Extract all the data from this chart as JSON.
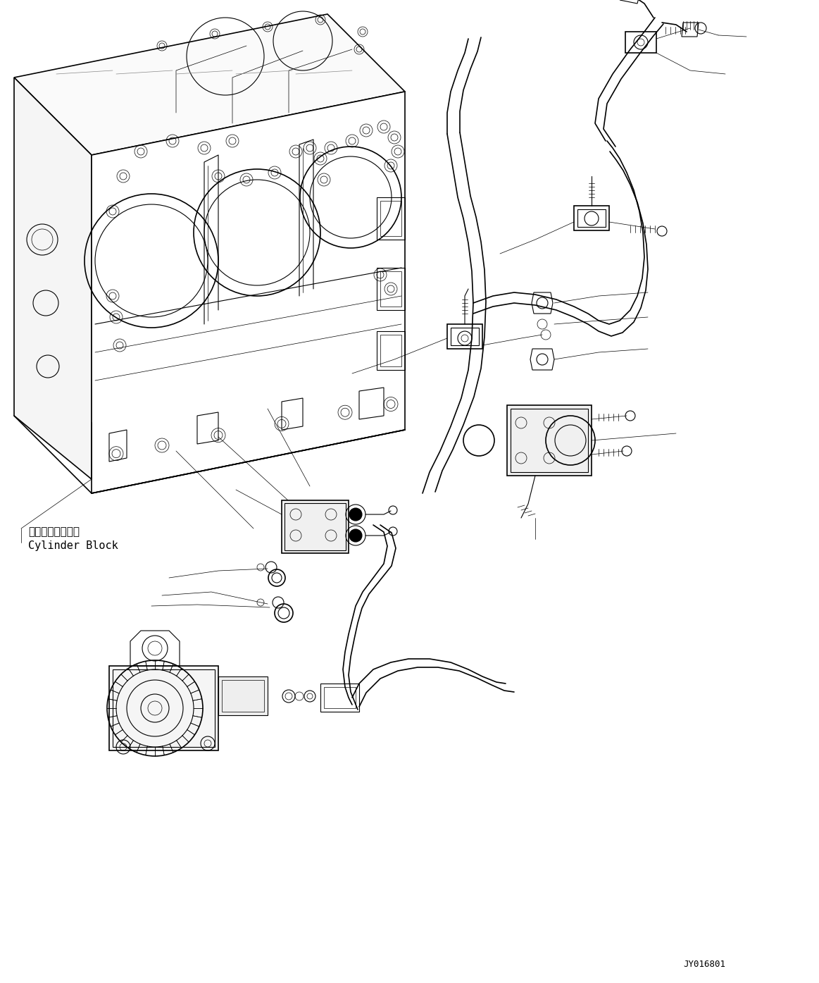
{
  "background_color": "#ffffff",
  "line_color": "#000000",
  "diagram_code": "JY016801",
  "label_japanese": "シリンダブロック",
  "label_english": "Cylinder Block",
  "fig_width": 11.63,
  "fig_height": 13.95,
  "dpi": 100
}
